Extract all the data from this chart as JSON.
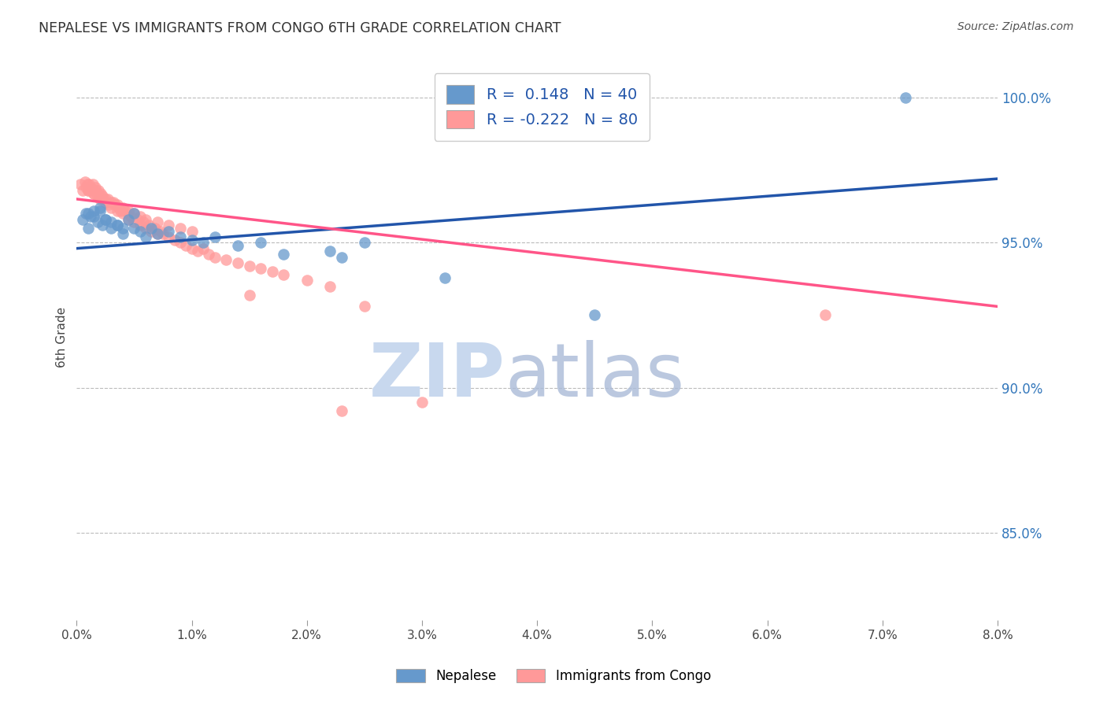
{
  "title": "NEPALESE VS IMMIGRANTS FROM CONGO 6TH GRADE CORRELATION CHART",
  "source": "Source: ZipAtlas.com",
  "ylabel": "6th Grade",
  "right_yticks": [
    "85.0%",
    "90.0%",
    "95.0%",
    "100.0%"
  ],
  "right_ytick_vals": [
    85.0,
    90.0,
    95.0,
    100.0
  ],
  "xmin": 0.0,
  "xmax": 8.0,
  "ymin": 82.0,
  "ymax": 101.5,
  "blue_R": 0.148,
  "blue_N": 40,
  "pink_R": -0.222,
  "pink_N": 80,
  "blue_color": "#6699CC",
  "pink_color": "#FF9999",
  "blue_line_color": "#2255AA",
  "pink_line_color": "#FF5588",
  "legend_label_blue": "Nepalese",
  "legend_label_pink": "Immigrants from Congo",
  "blue_line_y0": 94.8,
  "blue_line_y1": 97.2,
  "pink_line_y0": 96.5,
  "pink_line_y1": 92.8,
  "blue_scatter_x": [
    0.05,
    0.08,
    0.1,
    0.12,
    0.15,
    0.18,
    0.2,
    0.22,
    0.25,
    0.3,
    0.35,
    0.4,
    0.45,
    0.5,
    0.55,
    0.6,
    0.65,
    0.7,
    0.8,
    0.9,
    1.0,
    1.1,
    1.2,
    1.4,
    1.6,
    1.8,
    2.2,
    2.3,
    2.5,
    3.2,
    4.5,
    7.2,
    0.1,
    0.15,
    0.2,
    0.25,
    0.3,
    0.35,
    0.4,
    0.5
  ],
  "blue_scatter_y": [
    95.8,
    96.0,
    95.5,
    95.9,
    96.1,
    95.7,
    96.2,
    95.6,
    95.8,
    95.5,
    95.6,
    95.3,
    95.8,
    95.5,
    95.4,
    95.2,
    95.5,
    95.3,
    95.4,
    95.2,
    95.1,
    95.0,
    95.2,
    94.9,
    95.0,
    94.6,
    94.7,
    94.5,
    95.0,
    93.8,
    92.5,
    100.0,
    96.0,
    95.9,
    96.1,
    95.8,
    95.7,
    95.6,
    95.5,
    96.0
  ],
  "pink_scatter_x": [
    0.03,
    0.05,
    0.07,
    0.08,
    0.09,
    0.1,
    0.11,
    0.12,
    0.13,
    0.14,
    0.15,
    0.16,
    0.17,
    0.18,
    0.19,
    0.2,
    0.21,
    0.22,
    0.23,
    0.25,
    0.27,
    0.28,
    0.3,
    0.32,
    0.33,
    0.35,
    0.37,
    0.38,
    0.4,
    0.42,
    0.45,
    0.47,
    0.5,
    0.53,
    0.55,
    0.58,
    0.6,
    0.63,
    0.65,
    0.68,
    0.7,
    0.73,
    0.75,
    0.8,
    0.85,
    0.9,
    0.95,
    1.0,
    1.05,
    1.1,
    1.15,
    1.2,
    1.3,
    1.4,
    1.5,
    1.6,
    1.7,
    1.8,
    2.0,
    2.2,
    0.1,
    0.15,
    0.2,
    0.25,
    0.3,
    0.35,
    0.4,
    0.45,
    0.5,
    0.55,
    0.6,
    0.7,
    0.8,
    0.9,
    1.0,
    1.5,
    2.5,
    6.5,
    2.3,
    3.0
  ],
  "pink_scatter_y": [
    97.0,
    96.8,
    97.1,
    96.9,
    97.0,
    96.8,
    97.0,
    96.9,
    96.8,
    97.0,
    96.7,
    96.9,
    96.8,
    96.6,
    96.8,
    96.5,
    96.7,
    96.6,
    96.5,
    96.4,
    96.5,
    96.3,
    96.2,
    96.4,
    96.3,
    96.1,
    96.2,
    96.1,
    96.0,
    96.1,
    95.8,
    95.9,
    95.7,
    95.8,
    95.6,
    95.7,
    95.5,
    95.6,
    95.4,
    95.5,
    95.3,
    95.4,
    95.3,
    95.2,
    95.1,
    95.0,
    94.9,
    94.8,
    94.7,
    94.8,
    94.6,
    94.5,
    94.4,
    94.3,
    94.2,
    94.1,
    94.0,
    93.9,
    93.7,
    93.5,
    96.8,
    96.7,
    96.6,
    96.5,
    96.4,
    96.3,
    96.2,
    96.1,
    96.0,
    95.9,
    95.8,
    95.7,
    95.6,
    95.5,
    95.4,
    93.2,
    92.8,
    92.5,
    89.2,
    89.5
  ]
}
